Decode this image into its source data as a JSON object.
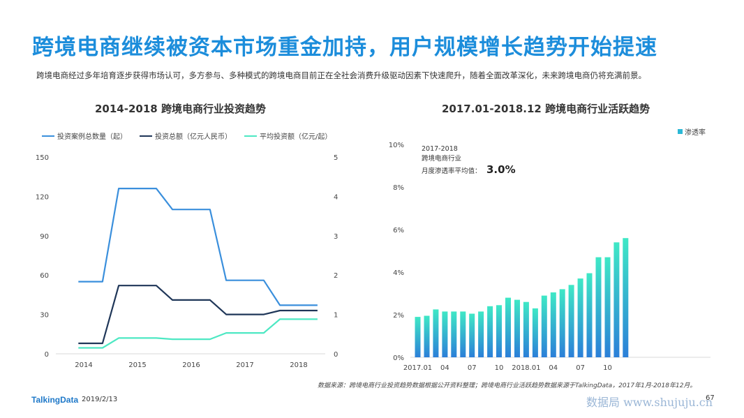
{
  "page": {
    "title": "跨境电商继续被资本市场重金加持，用户规模增长趋势开始提速",
    "subtitle": "跨境电商经过多年培育逐步获得市场认可，多方参与、多种模式的跨境电商目前正在全社会消费升级驱动因素下快速爬升，随着全面改革深化，未来跨境电商仍将充满前景。",
    "footer_logo": "TalkingData",
    "footer_date": "2019/2/13",
    "source": "数据来源：跨境电商行业投资趋势数据根据公开资料整理；跨境电商行业活跃趋势数据来源于TalkingData，2017年1月-2018年12月。",
    "watermark": "数据局 www.shujuju.cn",
    "page_number": "67"
  },
  "chart_data": [
    {
      "type": "line",
      "title": "2014-2018  跨境电商行业投资趋势",
      "x_ticks": [
        "2014",
        "2015",
        "2016",
        "2017",
        "2018"
      ],
      "x": [
        2013.9,
        2014.35,
        2014.65,
        2015.35,
        2015.65,
        2016.35,
        2016.65,
        2017.35,
        2017.65,
        2018.35
      ],
      "y_left_ticks": [
        0,
        30,
        60,
        90,
        120,
        150
      ],
      "y_left_range": [
        0,
        150
      ],
      "y_right_ticks": [
        0,
        1,
        2,
        3,
        4,
        5
      ],
      "y_right_range": [
        0,
        5
      ],
      "legend_position": "top",
      "series": [
        {
          "name": "投资案例总数量（起）",
          "color": "#3a8fdc",
          "axis": "left",
          "values": [
            55,
            55,
            126,
            126,
            110,
            110,
            56,
            56,
            37,
            37
          ]
        },
        {
          "name": "投资总额（亿元人民币）",
          "color": "#1f3658",
          "axis": "left",
          "values": [
            8,
            8,
            52,
            52,
            41,
            41,
            30,
            30,
            33,
            33
          ]
        },
        {
          "name": "平均投资额（亿元/起）",
          "color": "#4de8c3",
          "axis": "right",
          "values": [
            0.15,
            0.15,
            0.4,
            0.4,
            0.37,
            0.37,
            0.53,
            0.53,
            0.88,
            0.88
          ]
        }
      ]
    },
    {
      "type": "bar",
      "title": "2017.01-2018.12  跨境电商行业活跃趋势",
      "categories": [
        "2017.01",
        "02",
        "03",
        "04",
        "05",
        "06",
        "07",
        "08",
        "09",
        "10",
        "11",
        "12",
        "2018.01",
        "02",
        "03",
        "04",
        "05",
        "06",
        "07",
        "08",
        "09",
        "10",
        "11",
        "12"
      ],
      "x_tick_labels": [
        {
          "index": 0,
          "label": "2017.01"
        },
        {
          "index": 3,
          "label": "04"
        },
        {
          "index": 6,
          "label": "07"
        },
        {
          "index": 9,
          "label": "10"
        },
        {
          "index": 12,
          "label": "2018.01"
        },
        {
          "index": 15,
          "label": "04"
        },
        {
          "index": 18,
          "label": "07"
        },
        {
          "index": 21,
          "label": "10"
        }
      ],
      "y_ticks": [
        "0%",
        "2%",
        "4%",
        "6%",
        "8%",
        "10%"
      ],
      "ylim": [
        0,
        10
      ],
      "legend_position": "top-right",
      "series": [
        {
          "name": "渗透率",
          "unit": "%",
          "values": [
            1.9,
            1.95,
            2.25,
            2.15,
            2.15,
            2.15,
            2.05,
            2.15,
            2.4,
            2.45,
            2.8,
            2.7,
            2.6,
            2.3,
            2.9,
            3.05,
            3.2,
            3.4,
            3.7,
            3.95,
            4.7,
            4.7,
            5.4,
            5.6
          ]
        }
      ],
      "annotation": {
        "line1": "2017-2018",
        "line2": "跨境电商行业",
        "line3_label": "月度渗透率平均值：",
        "line3_value": "3.0%"
      }
    }
  ]
}
